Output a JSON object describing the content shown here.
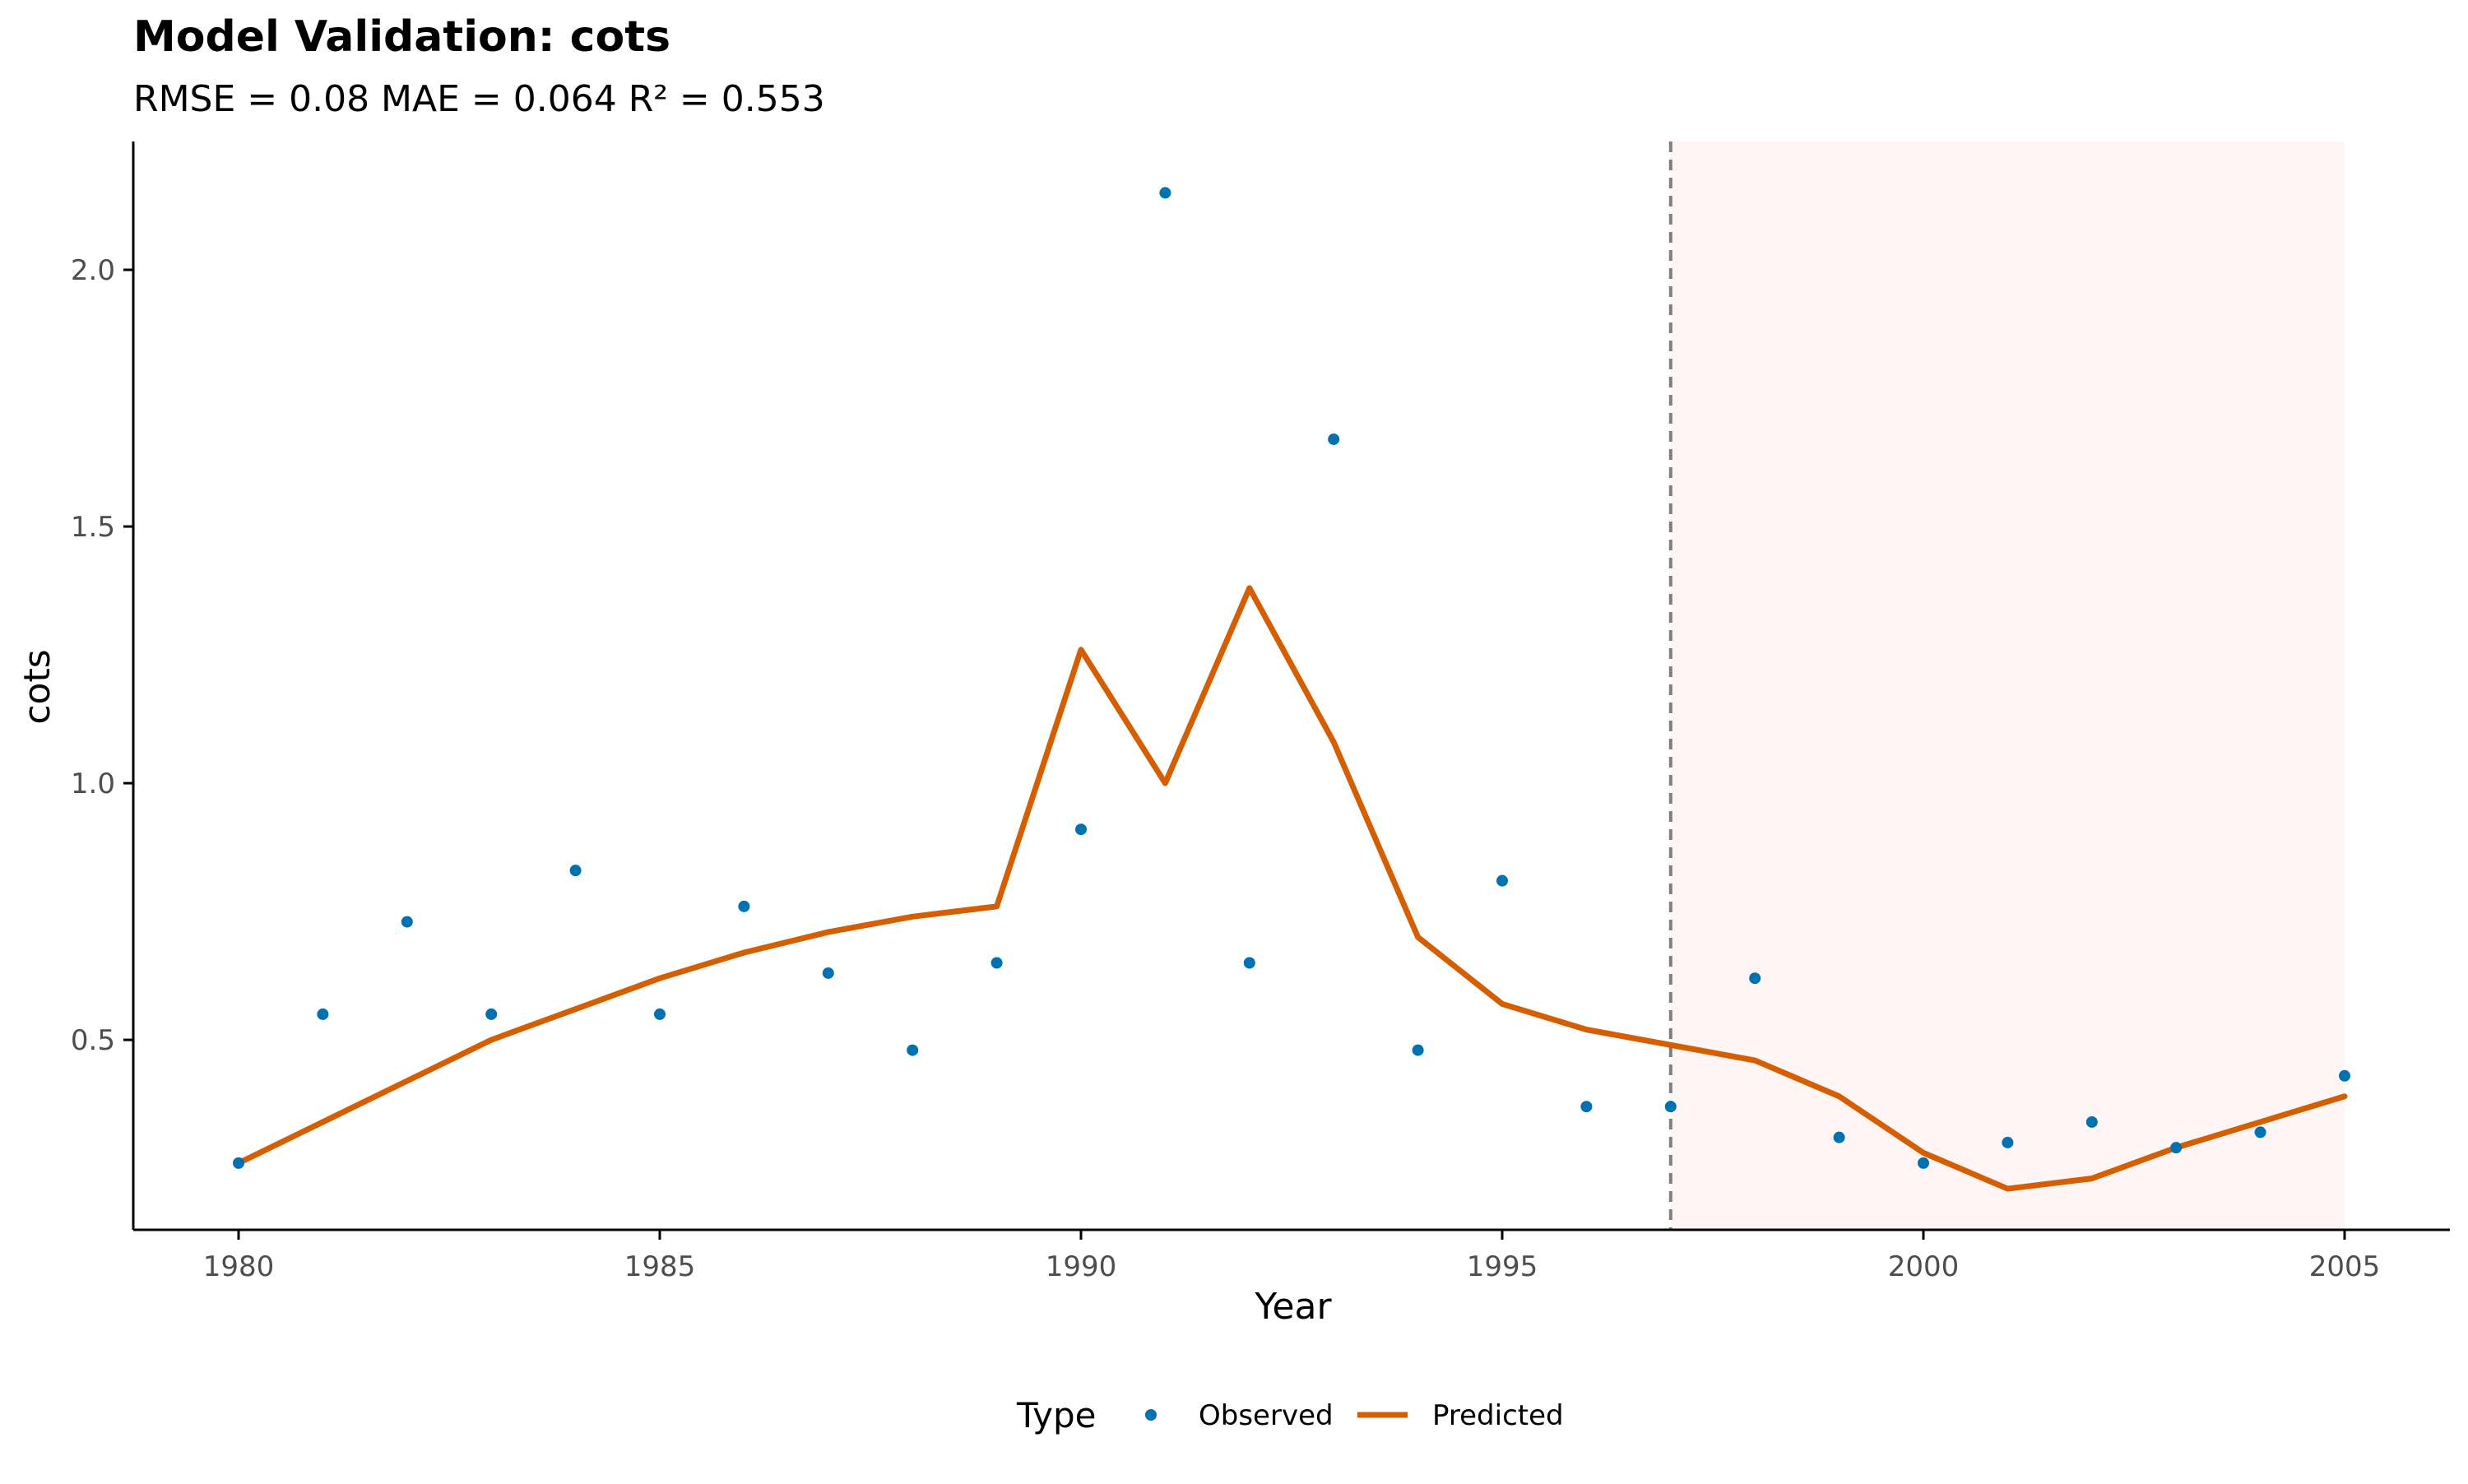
{
  "chart_data": {
    "type": "line",
    "title": "Model Validation: cots",
    "subtitle": "RMSE = 0.08 MAE = 0.064 R² = 0.553",
    "xlabel": "Year",
    "ylabel": "cots",
    "xlim": [
      1978.75,
      2006.25
    ],
    "ylim": [
      0.13,
      2.25
    ],
    "x_ticks": [
      1980,
      1985,
      1990,
      1995,
      2000,
      2005
    ],
    "x_tick_labels": [
      "1980",
      "1985",
      "1990",
      "1995",
      "2000",
      "2005"
    ],
    "y_ticks": [
      0.5,
      1.0,
      1.5,
      2.0
    ],
    "y_tick_labels": [
      "0.5",
      "1.0",
      "1.5",
      "2.0"
    ],
    "validation_start": 1997,
    "validation_end": 2005,
    "x": [
      1980,
      1981,
      1982,
      1983,
      1984,
      1985,
      1986,
      1987,
      1988,
      1989,
      1990,
      1991,
      1992,
      1993,
      1994,
      1995,
      1996,
      1997,
      1998,
      1999,
      2000,
      2001,
      2002,
      2003,
      2004,
      2005
    ],
    "series": [
      {
        "name": "Observed",
        "kind": "points",
        "color": "#0072B2",
        "values": [
          0.26,
          0.55,
          0.73,
          0.55,
          0.83,
          0.55,
          0.76,
          0.63,
          0.48,
          0.65,
          0.91,
          2.15,
          0.65,
          1.67,
          0.48,
          0.81,
          0.37,
          0.37,
          0.62,
          0.31,
          0.26,
          0.3,
          0.34,
          0.29,
          0.32,
          0.43
        ]
      },
      {
        "name": "Predicted",
        "kind": "line",
        "color": "#D55E00",
        "values": [
          0.26,
          0.34,
          0.42,
          0.5,
          0.56,
          0.62,
          0.67,
          0.71,
          0.74,
          0.76,
          1.26,
          1.0,
          1.38,
          1.08,
          0.7,
          0.57,
          0.52,
          0.49,
          0.46,
          0.39,
          0.28,
          0.21,
          0.23,
          0.29,
          0.34,
          0.39
        ]
      }
    ],
    "legend": {
      "title": "Type",
      "position": "bottom",
      "entries": [
        "Observed",
        "Predicted"
      ]
    },
    "colors": {
      "observed": "#0072B2",
      "predicted": "#D55E00",
      "shade": "#FFF5F5",
      "vline": "#7F7F7F",
      "axis": "#000000",
      "tick_label": "#4D4D4D"
    }
  }
}
